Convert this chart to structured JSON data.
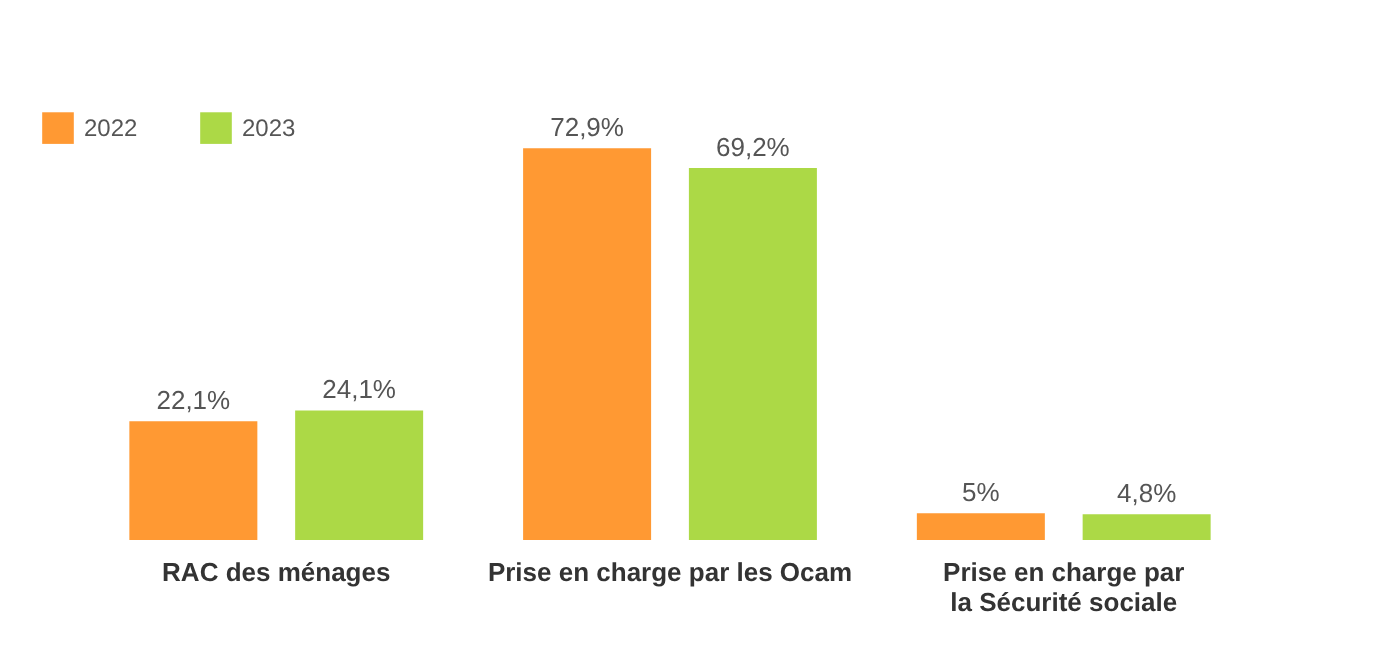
{
  "chart_data": {
    "type": "bar",
    "categories": [
      "RAC des ménages",
      "Prise en charge par les Ocam",
      "Prise en charge par\nla Sécurité sociale"
    ],
    "series": [
      {
        "name": "2022",
        "color": "#ff9933",
        "values": [
          22.1,
          72.9,
          5
        ],
        "value_labels": [
          "22,1%",
          "72,9%",
          "5%"
        ]
      },
      {
        "name": "2023",
        "color": "#acd946",
        "values": [
          24.1,
          69.2,
          4.8
        ],
        "value_labels": [
          "24,1%",
          "69,2%",
          "4,8%"
        ]
      }
    ],
    "legend": "top left",
    "grid": false,
    "tick_labels": "x"
  }
}
